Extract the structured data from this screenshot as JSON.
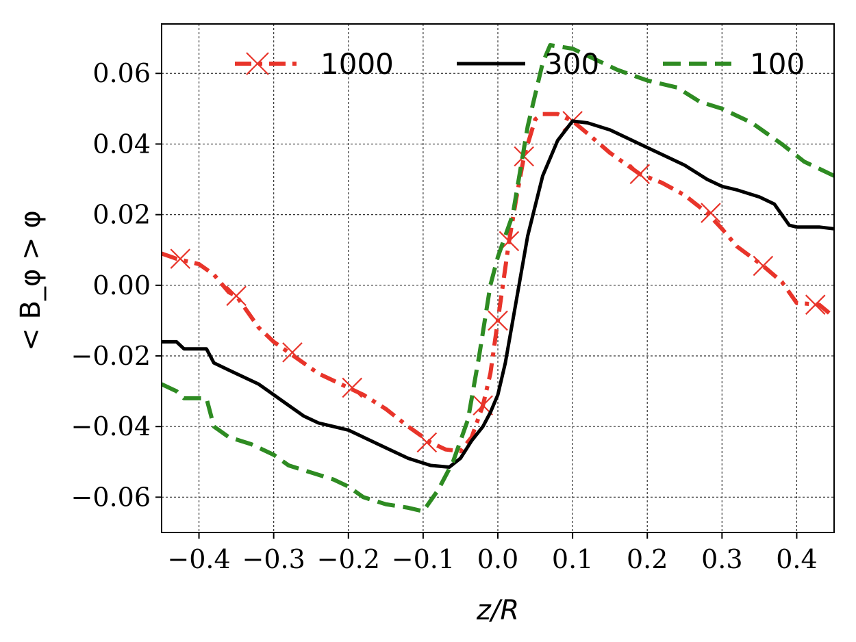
{
  "chart_data": {
    "type": "line",
    "xlabel": "z/R",
    "ylabel": "< B_φ > φ",
    "xlim": [
      -0.45,
      0.45
    ],
    "ylim": [
      -0.07,
      0.074
    ],
    "xticks": [
      -0.4,
      -0.3,
      -0.2,
      -0.1,
      0.0,
      0.1,
      0.2,
      0.3,
      0.4
    ],
    "xtick_labels": [
      "−0.4",
      "−0.3",
      "−0.2",
      "−0.1",
      "0.0",
      "0.1",
      "0.2",
      "0.3",
      "0.4"
    ],
    "yticks": [
      0.06,
      0.04,
      0.02,
      0.0,
      -0.02,
      -0.04,
      -0.06
    ],
    "ytick_labels": [
      "0.06",
      "0.04",
      "0.02",
      "0.00",
      "−0.02",
      "−0.04",
      "−0.06"
    ],
    "grid": true,
    "legend_position": "top",
    "colors": {
      "red": "#e8342a",
      "black": "#000000",
      "green": "#2e8b22"
    },
    "series": [
      {
        "name": "1000",
        "color": "#e8342a",
        "style": "dashdot",
        "marker": "x",
        "x": [
          -0.45,
          -0.43,
          -0.4,
          -0.38,
          -0.36,
          -0.35,
          -0.34,
          -0.32,
          -0.3,
          -0.28,
          -0.26,
          -0.24,
          -0.22,
          -0.2,
          -0.18,
          -0.15,
          -0.12,
          -0.09,
          -0.07,
          -0.05,
          -0.035,
          -0.02,
          -0.01,
          0.0,
          0.015,
          0.025,
          0.035,
          0.05,
          0.06,
          0.08,
          0.1,
          0.12,
          0.15,
          0.19,
          0.22,
          0.25,
          0.28,
          0.3,
          0.32,
          0.355,
          0.38,
          0.4,
          0.43,
          0.45
        ],
        "y": [
          0.009,
          0.0075,
          0.006,
          0.003,
          -0.002,
          -0.003,
          -0.006,
          -0.012,
          -0.016,
          -0.019,
          -0.022,
          -0.025,
          -0.027,
          -0.029,
          -0.031,
          -0.035,
          -0.04,
          -0.0445,
          -0.0465,
          -0.047,
          -0.043,
          -0.034,
          -0.025,
          -0.01,
          0.0125,
          0.025,
          0.0365,
          0.047,
          0.0485,
          0.0485,
          0.0465,
          0.043,
          0.0375,
          0.0315,
          0.029,
          0.0255,
          0.0205,
          0.016,
          0.011,
          0.0055,
          0.001,
          -0.005,
          -0.0055,
          -0.009
        ],
        "markers_x": [
          -0.425,
          -0.35,
          -0.275,
          -0.195,
          -0.095,
          -0.02,
          0.0,
          0.015,
          0.035,
          0.1,
          0.19,
          0.285,
          0.355,
          0.425
        ],
        "markers_y": [
          0.0075,
          -0.003,
          -0.019,
          -0.029,
          -0.0445,
          -0.034,
          -0.01,
          0.0125,
          0.0365,
          0.0465,
          0.0315,
          0.0205,
          0.0055,
          -0.0055
        ]
      },
      {
        "name": "300",
        "color": "#000000",
        "style": "solid",
        "x": [
          -0.45,
          -0.43,
          -0.42,
          -0.39,
          -0.38,
          -0.36,
          -0.34,
          -0.32,
          -0.3,
          -0.28,
          -0.26,
          -0.24,
          -0.22,
          -0.2,
          -0.18,
          -0.15,
          -0.12,
          -0.09,
          -0.065,
          -0.05,
          -0.035,
          -0.02,
          -0.01,
          0.0,
          0.01,
          0.02,
          0.04,
          0.06,
          0.08,
          0.1,
          0.12,
          0.15,
          0.18,
          0.2,
          0.22,
          0.25,
          0.28,
          0.3,
          0.32,
          0.35,
          0.37,
          0.39,
          0.4,
          0.43,
          0.45
        ],
        "y": [
          -0.016,
          -0.016,
          -0.018,
          -0.018,
          -0.022,
          -0.024,
          -0.026,
          -0.028,
          -0.031,
          -0.034,
          -0.037,
          -0.039,
          -0.04,
          -0.041,
          -0.043,
          -0.046,
          -0.049,
          -0.051,
          -0.0515,
          -0.049,
          -0.044,
          -0.04,
          -0.036,
          -0.031,
          -0.022,
          -0.01,
          0.014,
          0.031,
          0.041,
          0.0465,
          0.046,
          0.044,
          0.041,
          0.039,
          0.037,
          0.034,
          0.03,
          0.028,
          0.027,
          0.025,
          0.023,
          0.017,
          0.0165,
          0.0165,
          0.016
        ]
      },
      {
        "name": "100",
        "color": "#2e8b22",
        "style": "dashed",
        "x": [
          -0.45,
          -0.43,
          -0.42,
          -0.39,
          -0.38,
          -0.36,
          -0.33,
          -0.3,
          -0.28,
          -0.25,
          -0.22,
          -0.2,
          -0.18,
          -0.15,
          -0.12,
          -0.1,
          -0.08,
          -0.06,
          -0.04,
          -0.025,
          -0.01,
          0.0,
          0.02,
          0.04,
          0.06,
          0.07,
          0.1,
          0.13,
          0.16,
          0.2,
          0.24,
          0.27,
          0.3,
          0.34,
          0.36,
          0.38,
          0.41,
          0.43,
          0.45
        ],
        "y": [
          -0.028,
          -0.03,
          -0.032,
          -0.032,
          -0.04,
          -0.043,
          -0.045,
          -0.048,
          -0.051,
          -0.053,
          -0.055,
          -0.057,
          -0.06,
          -0.062,
          -0.063,
          -0.064,
          -0.058,
          -0.05,
          -0.038,
          -0.02,
          0.0,
          0.008,
          0.02,
          0.045,
          0.063,
          0.068,
          0.067,
          0.064,
          0.061,
          0.058,
          0.056,
          0.052,
          0.05,
          0.046,
          0.043,
          0.04,
          0.035,
          0.033,
          0.031
        ]
      }
    ]
  }
}
